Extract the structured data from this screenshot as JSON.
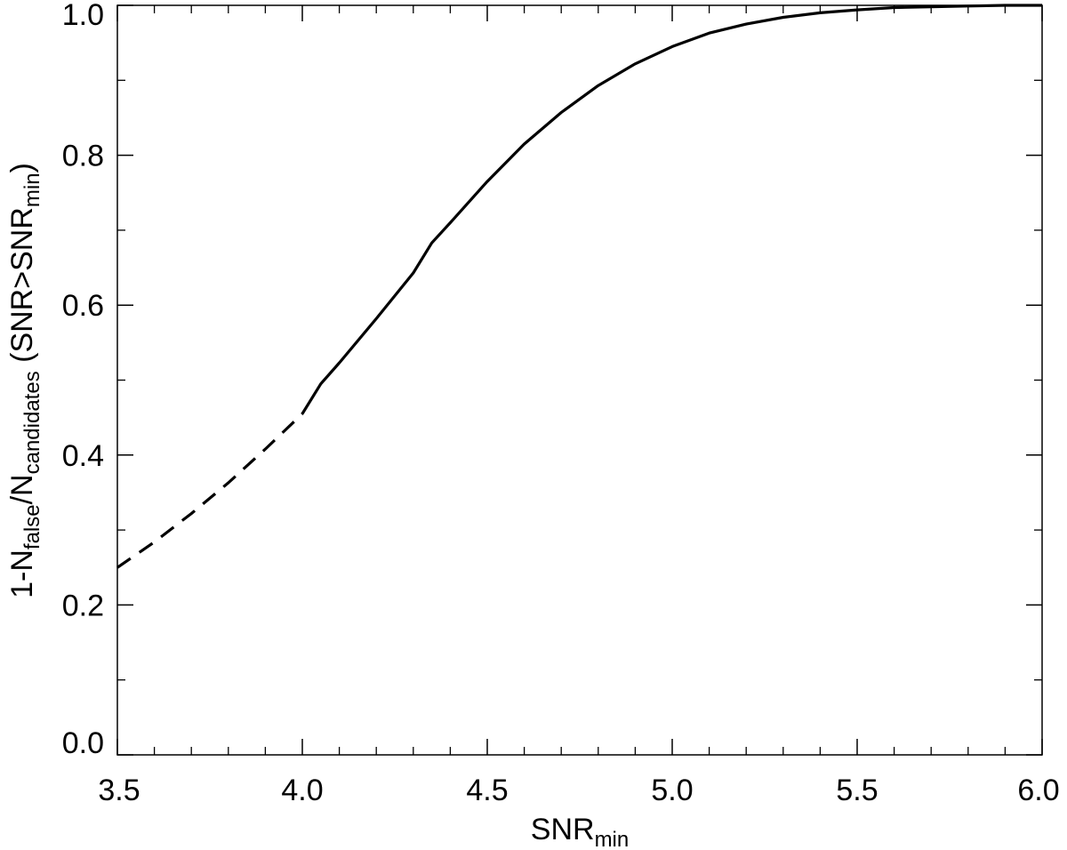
{
  "chart_data": {
    "type": "line",
    "xlabel": {
      "main": "SNR",
      "sub": "min"
    },
    "ylabel": {
      "parts": [
        {
          "t": "1-N",
          "sub": false
        },
        {
          "t": "false",
          "sub": true
        },
        {
          "t": "/N",
          "sub": false
        },
        {
          "t": "candidates",
          "sub": true
        },
        {
          "t": " (SNR>SNR",
          "sub": false
        },
        {
          "t": "min",
          "sub": true
        },
        {
          "t": ")",
          "sub": false
        }
      ]
    },
    "xlim": [
      3.5,
      6.0
    ],
    "ylim": [
      0.0,
      1.0
    ],
    "x_ticks": [
      "3.5",
      "4.0",
      "4.5",
      "5.0",
      "5.5",
      "6.0"
    ],
    "y_ticks": [
      "0.0",
      "0.2",
      "0.4",
      "0.6",
      "0.8",
      "1.0"
    ],
    "grid": false,
    "legend": "none",
    "line_color": "#000000",
    "series": [
      {
        "style": "dashed",
        "x": [
          3.5,
          3.6,
          3.7,
          3.8,
          3.9,
          4.0
        ],
        "y": [
          0.25,
          0.284,
          0.322,
          0.363,
          0.408,
          0.455
        ]
      },
      {
        "style": "solid",
        "x": [
          4.0,
          4.05,
          4.1,
          4.2,
          4.3,
          4.35,
          4.4,
          4.5,
          4.6,
          4.7,
          4.8,
          4.9,
          5.0,
          5.1,
          5.2,
          5.3,
          5.4,
          5.5,
          5.6,
          5.7,
          5.8,
          5.9,
          6.0
        ],
        "y": [
          0.455,
          0.495,
          0.523,
          0.582,
          0.643,
          0.683,
          0.71,
          0.765,
          0.815,
          0.857,
          0.893,
          0.922,
          0.945,
          0.963,
          0.975,
          0.984,
          0.99,
          0.994,
          0.997,
          0.998,
          0.999,
          1.0,
          1.0
        ]
      }
    ]
  }
}
